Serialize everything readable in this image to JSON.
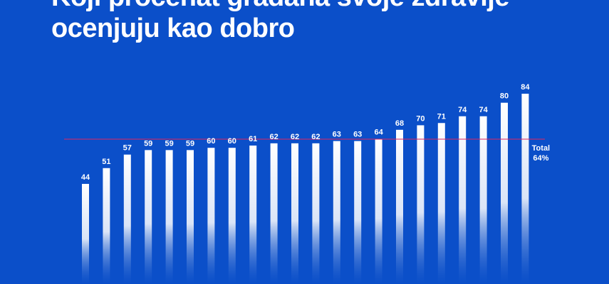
{
  "title_line1": "Koji procenat građana svoje zdravlje",
  "title_line2": "ocenjuju kao dobro",
  "colors": {
    "background": "#0b4fc9",
    "bar_top": "#ffffff",
    "bar_bottom": "#0b4fc9",
    "reference_line": "#e0245e",
    "text": "#ffffff"
  },
  "chart_data": {
    "type": "bar",
    "values": [
      44,
      51,
      57,
      59,
      59,
      59,
      60,
      60,
      61,
      62,
      62,
      62,
      63,
      63,
      64,
      68,
      70,
      71,
      74,
      74,
      80,
      84
    ],
    "reference_line": {
      "value": 64,
      "label": "Total",
      "label_value": "64%"
    },
    "grid": false
  }
}
